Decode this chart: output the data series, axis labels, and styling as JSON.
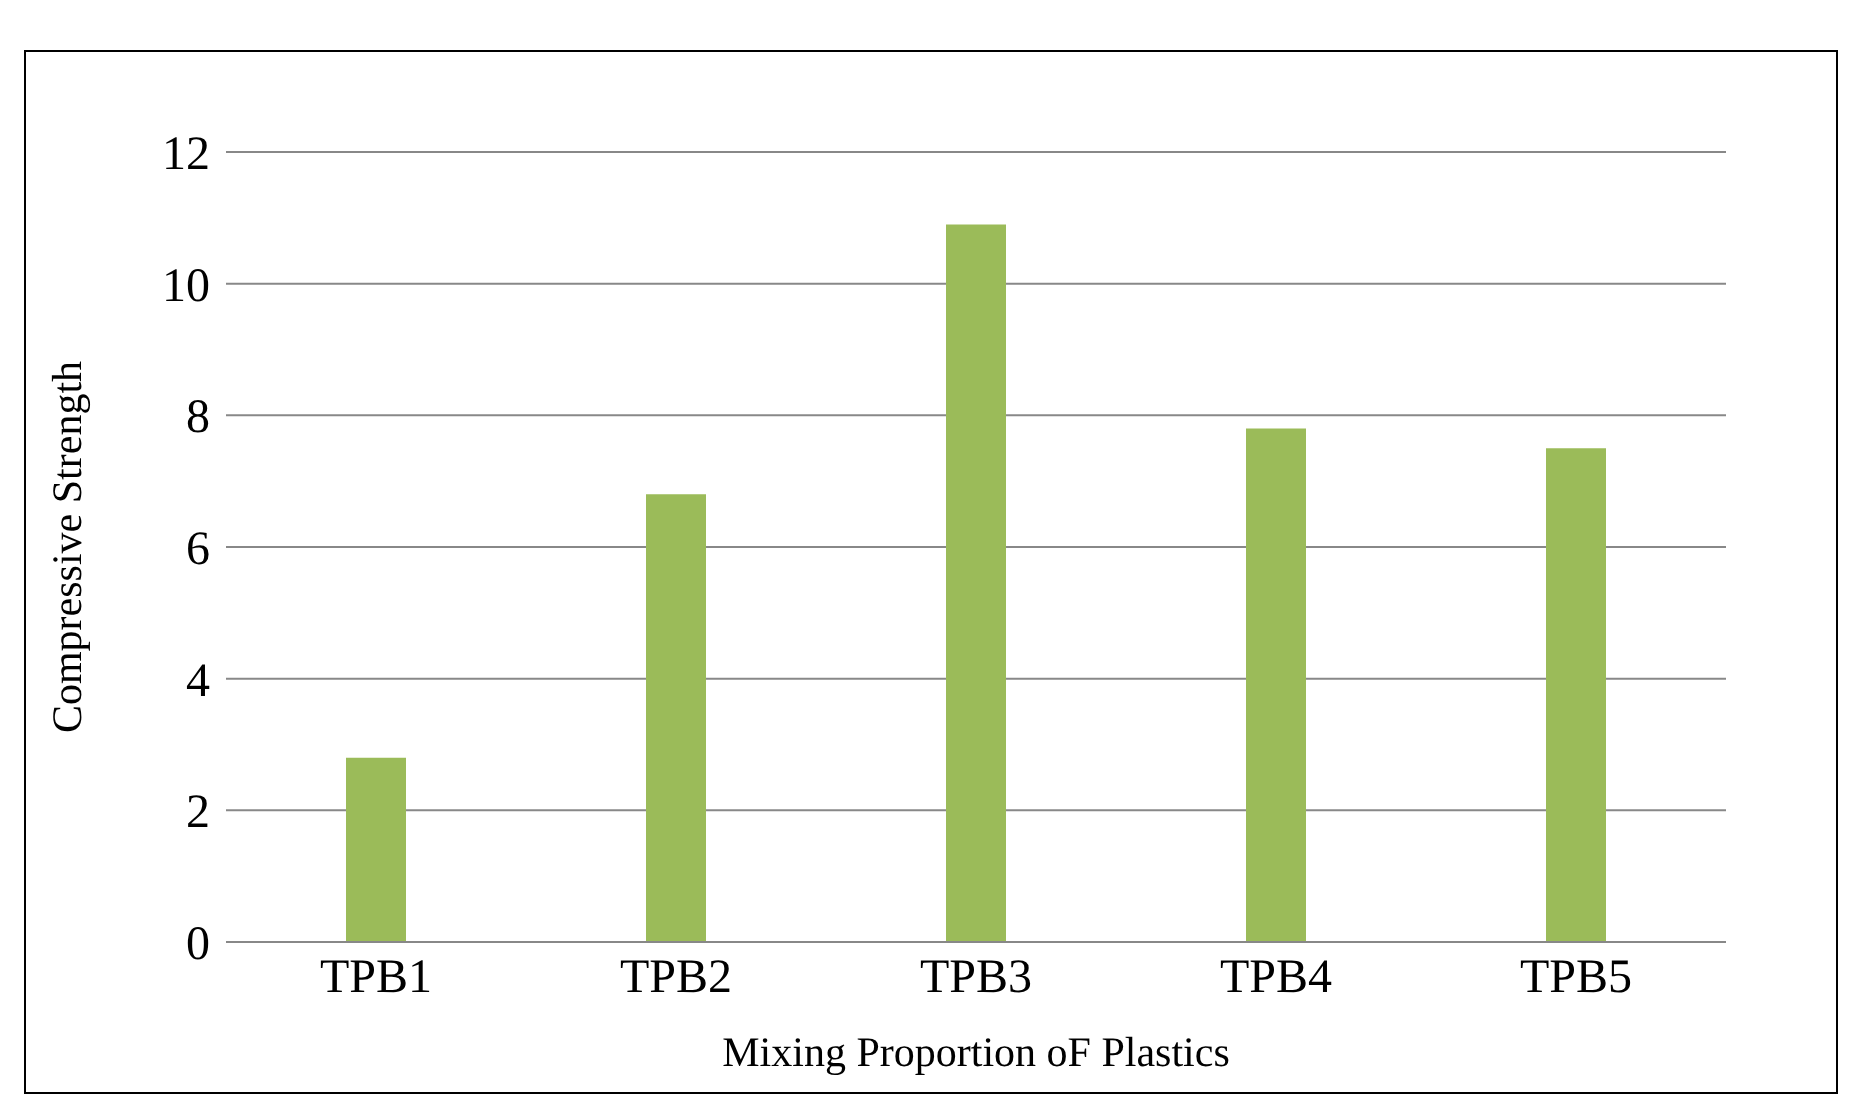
{
  "chart_data": {
    "type": "bar",
    "xlabel": "Mixing Proportion oF Plastics",
    "ylabel": "Compressive Strength",
    "categories": [
      "TPB1",
      "TPB2",
      "TPB3",
      "TPB4",
      "TPB5"
    ],
    "values": [
      2.8,
      6.8,
      10.9,
      7.8,
      7.5
    ],
    "color": "#9bbb59",
    "ylim": [
      0,
      12
    ],
    "yticks": [
      0,
      2,
      4,
      6,
      8,
      10,
      12
    ],
    "grid": "y",
    "legend": false
  }
}
